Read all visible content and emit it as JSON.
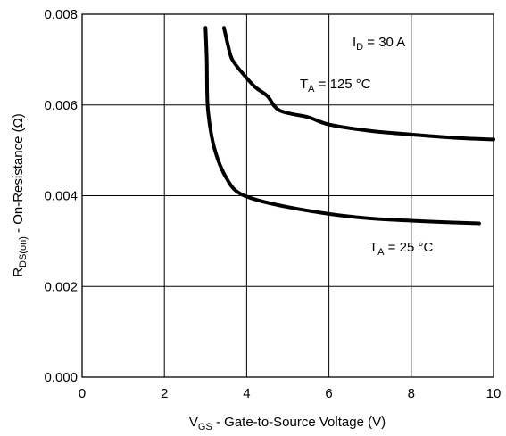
{
  "chart_data": {
    "type": "line",
    "title": "",
    "xlabel": {
      "main": "V",
      "sub": "GS",
      "rest": " - Gate-to-Source Voltage (V)"
    },
    "ylabel": {
      "main": "R",
      "sub": "DS(on)",
      "rest": " - On-Resistance (Ω)"
    },
    "xlim": [
      0,
      10
    ],
    "ylim": [
      0,
      0.008
    ],
    "xticks": [
      "0",
      "2",
      "4",
      "6",
      "8",
      "10"
    ],
    "yticks": [
      "0.000",
      "0.002",
      "0.004",
      "0.006",
      "0.008"
    ],
    "grid": true,
    "annotations": [
      {
        "main": "I",
        "sub": "D",
        "rest": " = 30 A"
      }
    ],
    "series": [
      {
        "label": {
          "main": "T",
          "sub": "A",
          "rest": " = 125 °C"
        },
        "points": [
          [
            3.45,
            0.0077
          ],
          [
            3.55,
            0.0073
          ],
          [
            3.65,
            0.007
          ],
          [
            3.9,
            0.0067
          ],
          [
            4.2,
            0.0064
          ],
          [
            4.5,
            0.0062
          ],
          [
            4.8,
            0.00588
          ],
          [
            5.5,
            0.00573
          ],
          [
            6.0,
            0.00557
          ],
          [
            7.0,
            0.00543
          ],
          [
            8.0,
            0.00535
          ],
          [
            9.0,
            0.00528
          ],
          [
            10.0,
            0.00524
          ]
        ]
      },
      {
        "label": {
          "main": "T",
          "sub": "A",
          "rest": " = 25 °C"
        },
        "points": [
          [
            3.0,
            0.0077
          ],
          [
            3.03,
            0.007
          ],
          [
            3.05,
            0.006
          ],
          [
            3.15,
            0.0053
          ],
          [
            3.3,
            0.0048
          ],
          [
            3.5,
            0.0044
          ],
          [
            3.75,
            0.0041
          ],
          [
            4.2,
            0.00392
          ],
          [
            5.0,
            0.00375
          ],
          [
            6.0,
            0.0036
          ],
          [
            7.0,
            0.0035
          ],
          [
            8.0,
            0.00345
          ],
          [
            9.0,
            0.00341
          ],
          [
            9.65,
            0.00339
          ]
        ]
      }
    ]
  }
}
